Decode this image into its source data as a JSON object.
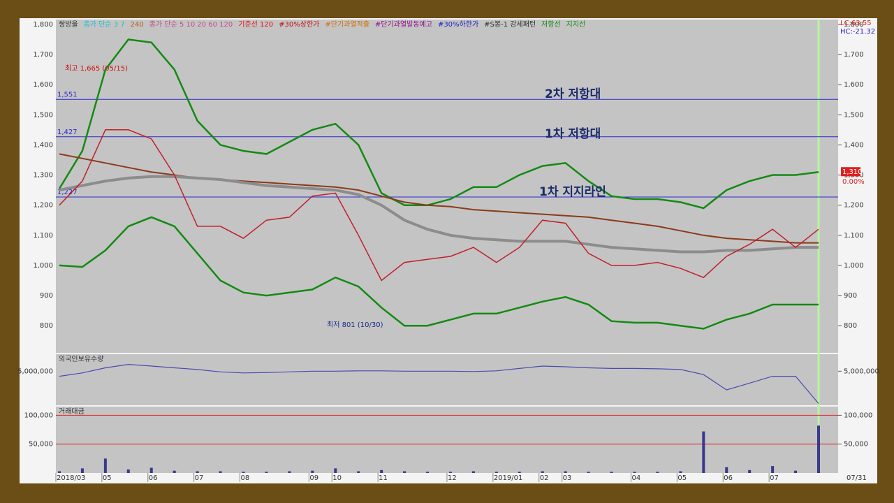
{
  "chart_data": [
    {
      "type": "line",
      "categories": [
        "2018/03",
        null,
        "05",
        null,
        "06",
        null,
        "07",
        null,
        "08",
        null,
        null,
        "09",
        "10",
        null,
        "11",
        null,
        null,
        "12",
        null,
        "2019/01",
        null,
        "02",
        "03",
        null,
        null,
        "04",
        null,
        "05",
        null,
        "06",
        null,
        "07",
        null,
        null
      ],
      "x_end_label": "07/31",
      "ylim": [
        710,
        1816
      ],
      "yticks": [
        800,
        900,
        {
          "value": 1000,
          "label": "1,000"
        },
        {
          "value": 1100,
          "label": "1,100"
        },
        {
          "value": 1200,
          "label": "1,200"
        },
        {
          "value": 1300,
          "label": "1,300"
        },
        {
          "value": 1400,
          "label": "1,400"
        },
        {
          "value": 1500,
          "label": "1,500"
        },
        {
          "value": 1600,
          "label": "1,600"
        },
        {
          "value": 1700,
          "label": "1,700"
        },
        {
          "value": 1800,
          "label": "1,800"
        }
      ],
      "series": [
        {
          "name": "저항선",
          "color": "#138a13",
          "values": [
            1255,
            1380,
            1650,
            1750,
            1740,
            1650,
            1480,
            1400,
            1380,
            1370,
            1410,
            1450,
            1470,
            1400,
            1240,
            1200,
            1200,
            1220,
            1260,
            1260,
            1300,
            1330,
            1340,
            1280,
            1230,
            1220,
            1220,
            1210,
            1190,
            1250,
            1280,
            1300,
            1300,
            1310
          ]
        },
        {
          "name": "지지선",
          "color": "#138a13",
          "values": [
            1000,
            995,
            1050,
            1130,
            1160,
            1130,
            1040,
            950,
            910,
            900,
            910,
            920,
            960,
            930,
            860,
            800,
            800,
            820,
            840,
            840,
            860,
            880,
            895,
            870,
            815,
            810,
            810,
            800,
            790,
            820,
            840,
            870,
            870,
            870
          ]
        },
        {
          "name": "240",
          "color": "#8b3a1a",
          "values": [
            1370,
            1355,
            1340,
            1325,
            1310,
            1300,
            1290,
            1285,
            1280,
            1275,
            1270,
            1265,
            1260,
            1250,
            1230,
            1210,
            1200,
            1195,
            1185,
            1180,
            1175,
            1170,
            1165,
            1160,
            1150,
            1140,
            1130,
            1115,
            1100,
            1090,
            1085,
            1080,
            1075,
            1075
          ]
        },
        {
          "name": "120",
          "color": "#8c8c8c",
          "values": [
            1250,
            1265,
            1280,
            1290,
            1295,
            1295,
            1290,
            1285,
            1275,
            1265,
            1260,
            1255,
            1250,
            1235,
            1200,
            1150,
            1120,
            1100,
            1090,
            1085,
            1080,
            1080,
            1080,
            1070,
            1060,
            1055,
            1050,
            1045,
            1045,
            1050,
            1050,
            1055,
            1060,
            1060
          ]
        },
        {
          "name": "쌍방울",
          "color": "#c0202a",
          "values": [
            1200,
            1280,
            1450,
            1450,
            1420,
            1300,
            1130,
            1130,
            1090,
            1150,
            1160,
            1230,
            1240,
            1100,
            950,
            1010,
            1020,
            1030,
            1060,
            1010,
            1060,
            1150,
            1140,
            1040,
            1000,
            1000,
            1010,
            990,
            960,
            1030,
            1070,
            1120,
            1060,
            1120
          ]
        }
      ],
      "legend_extra": [
        {
          "text": "종가 단순 3 7",
          "color": "#19c0d0"
        },
        {
          "text": "종가 단순 5 10 20 60 120",
          "color": "#c04a8a"
        },
        {
          "text": "기준선 120",
          "color": "#e01010"
        },
        {
          "text": "#30%상한가",
          "color": "#c01010"
        },
        {
          "text": "#단기과열적출",
          "color": "#d07010"
        },
        {
          "text": "#단기과열발동예고",
          "color": "#901090"
        },
        {
          "text": "#30%하한가",
          "color": "#2020c0"
        },
        {
          "text": "#S봉-1 강세패턴",
          "color": "#303030"
        }
      ],
      "levels": [
        {
          "value": 1551,
          "label": "1,551"
        },
        {
          "value": 1427,
          "label": "1,427"
        },
        {
          "value": 1227,
          "label": "1,227"
        }
      ],
      "level_color": "#2a2ad0",
      "annotations": [
        "2차 저항대",
        "1차 저항대",
        "1차 지지라인",
        "최고 1,665 (05/15)",
        "최저 801 (10/30)"
      ],
      "last_price": {
        "value": 1310,
        "label": "1,310"
      },
      "change": "0.00%",
      "lc": "LC:63.55",
      "hc": "HC:-21.32"
    },
    {
      "type": "line",
      "title": "외국인보유수량",
      "color": "#4a4ab0",
      "ylim": [
        4000000,
        5500000
      ],
      "yticks": [
        {
          "value": 5000000,
          "label": "5,000,000"
        }
      ],
      "values": [
        4850000,
        4950000,
        5100000,
        5200000,
        5150000,
        5100000,
        5050000,
        4980000,
        4950000,
        4960000,
        4980000,
        5000000,
        5000000,
        5010000,
        5010000,
        5000000,
        5000000,
        5000000,
        4990000,
        5010000,
        5080000,
        5150000,
        5130000,
        5100000,
        5080000,
        5080000,
        5070000,
        5050000,
        4900000,
        4450000,
        4650000,
        4850000,
        4850000,
        4050000
      ]
    },
    {
      "type": "bar",
      "title": "거래대금",
      "color": "#3a3a8c",
      "ylim": [
        0,
        115000
      ],
      "yticks": [
        {
          "value": 50000,
          "label": "50,000"
        },
        {
          "value": 100000,
          "label": "100,000"
        }
      ],
      "values": [
        3000,
        8000,
        25000,
        6000,
        9000,
        4000,
        3000,
        3000,
        2000,
        2000,
        3000,
        4000,
        8000,
        3000,
        5000,
        3000,
        2000,
        2000,
        3000,
        2000,
        2000,
        3000,
        3000,
        2000,
        2000,
        2000,
        2000,
        3000,
        72000,
        10000,
        5000,
        12000,
        4000,
        82000
      ]
    }
  ]
}
